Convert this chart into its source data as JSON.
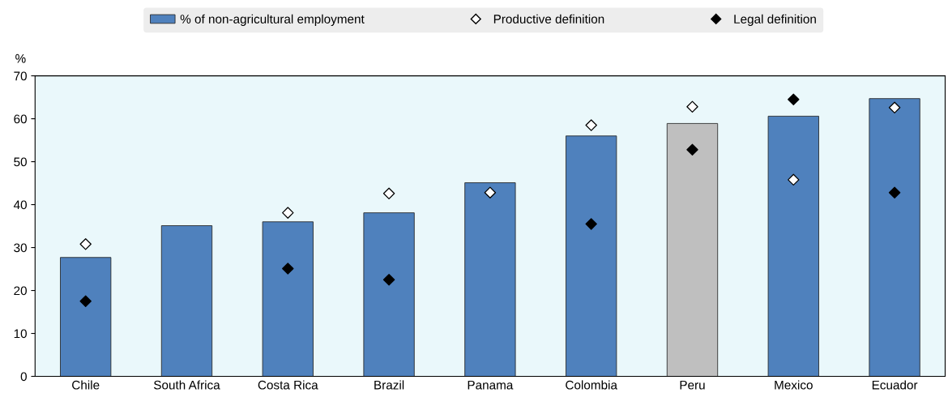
{
  "chart_data": {
    "type": "bar",
    "ylabel": "%",
    "categories": [
      "Chile",
      "South Africa",
      "Costa Rica",
      "Brazil",
      "Panama",
      "Colombia",
      "Peru",
      "Mexico",
      "Ecuador"
    ],
    "series": [
      {
        "name": "% of non-agricultural employment",
        "color": "#4f81bd",
        "colors": [
          "#4f81bd",
          "#4f81bd",
          "#4f81bd",
          "#4f81bd",
          "#4f81bd",
          "#4f81bd",
          "#bfbfbf",
          "#4f81bd",
          "#4f81bd"
        ],
        "values": [
          27.7,
          35.1,
          36.0,
          38.1,
          45.1,
          56.0,
          58.9,
          60.6,
          64.7
        ]
      },
      {
        "name": "Productive definition",
        "type": "scatter",
        "color": "#ffffff",
        "values": [
          30.8,
          null,
          38.1,
          42.6,
          42.8,
          58.5,
          62.8,
          45.8,
          62.6
        ]
      },
      {
        "name": "Legal definition",
        "type": "scatter",
        "color": "#000000",
        "values": [
          17.5,
          null,
          25.1,
          22.5,
          null,
          35.5,
          52.8,
          64.5,
          42.8
        ]
      }
    ],
    "ylim": [
      0,
      70
    ],
    "yticks": [
      0,
      10,
      20,
      30,
      40,
      50,
      60,
      70
    ],
    "grid": false,
    "legend": "top",
    "marker": "diamond"
  }
}
